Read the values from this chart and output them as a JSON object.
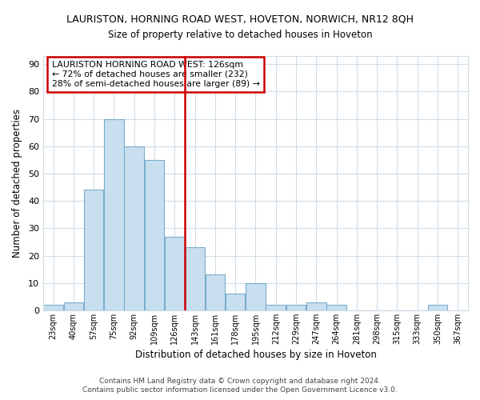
{
  "title": "LAURISTON, HORNING ROAD WEST, HOVETON, NORWICH, NR12 8QH",
  "subtitle": "Size of property relative to detached houses in Hoveton",
  "xlabel": "Distribution of detached houses by size in Hoveton",
  "ylabel": "Number of detached properties",
  "bar_color": "#c8dff0",
  "bar_edge_color": "#7aadcc",
  "categories": [
    "23sqm",
    "40sqm",
    "57sqm",
    "75sqm",
    "92sqm",
    "109sqm",
    "126sqm",
    "143sqm",
    "161sqm",
    "178sqm",
    "195sqm",
    "212sqm",
    "229sqm",
    "247sqm",
    "264sqm",
    "281sqm",
    "298sqm",
    "315sqm",
    "333sqm",
    "350sqm",
    "367sqm"
  ],
  "values": [
    2,
    3,
    44,
    70,
    60,
    55,
    27,
    23,
    13,
    6,
    10,
    2,
    2,
    3,
    2,
    0,
    0,
    0,
    0,
    2,
    0
  ],
  "highlight_index": 6,
  "highlight_color": "#cc0000",
  "annotation_title": "LAURISTON HORNING ROAD WEST: 126sqm",
  "annotation_line1": "← 72% of detached houses are smaller (232)",
  "annotation_line2": "28% of semi-detached houses are larger (89) →",
  "annotation_box_color": "#ffffff",
  "annotation_box_edge_color": "#cc0000",
  "ylim": [
    0,
    93
  ],
  "yticks": [
    0,
    10,
    20,
    30,
    40,
    50,
    60,
    70,
    80,
    90
  ],
  "footer1": "Contains HM Land Registry data © Crown copyright and database right 2024.",
  "footer2": "Contains public sector information licensed under the Open Government Licence v3.0.",
  "background_color": "#ffffff",
  "plot_bg_color": "#ffffff",
  "grid_color": "#d0dce8",
  "fig_width": 6.0,
  "fig_height": 5.0,
  "dpi": 100
}
